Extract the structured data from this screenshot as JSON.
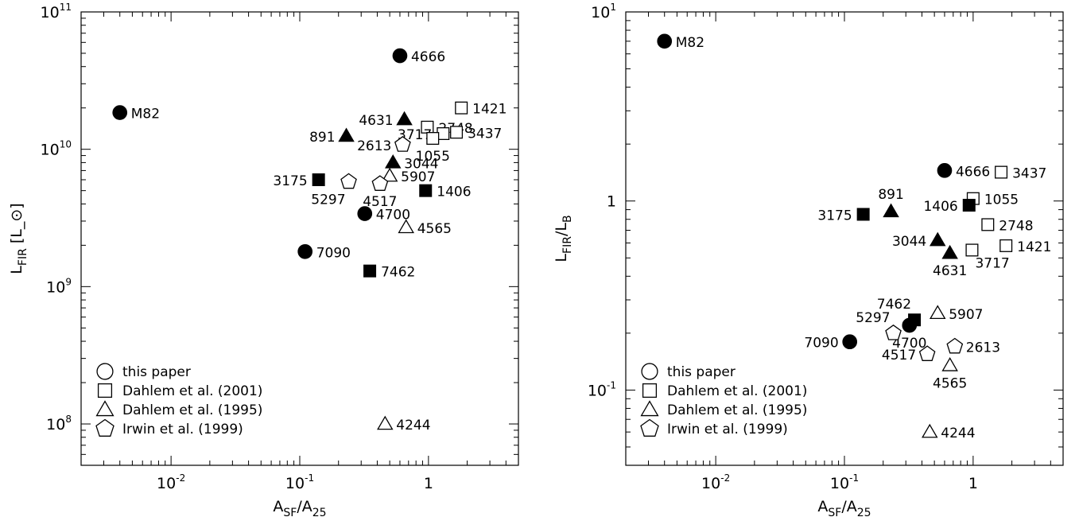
{
  "chart_data": [
    {
      "type": "scatter",
      "xlabel": "A_SF/A_25",
      "ylabel": "L_FIR [L_⊙]",
      "xscale": "log",
      "yscale": "log",
      "xlim": [
        0.002,
        5
      ],
      "ylim": [
        50000000,
        100000000000
      ],
      "x_ticks": [
        {
          "value": 0.01,
          "label": "10",
          "exp": "-2"
        },
        {
          "value": 0.1,
          "label": "10",
          "exp": "-1"
        },
        {
          "value": 1,
          "label": "1",
          "exp": ""
        }
      ],
      "y_ticks": [
        {
          "value": 100000000,
          "label": "10",
          "exp": "8"
        },
        {
          "value": 1000000000,
          "label": "10",
          "exp": "9"
        },
        {
          "value": 10000000000,
          "label": "10",
          "exp": "10"
        },
        {
          "value": 100000000000,
          "label": "10",
          "exp": "11"
        }
      ],
      "legend_position": "bottom-left",
      "points": [
        {
          "label": "M82",
          "x": 0.004,
          "y": 18500000000,
          "marker": "circle",
          "fill": "filled",
          "label_side": "right"
        },
        {
          "label": "4666",
          "x": 0.6,
          "y": 48000000000,
          "marker": "circle",
          "fill": "filled",
          "label_side": "right"
        },
        {
          "label": "4700",
          "x": 0.32,
          "y": 3400000000,
          "marker": "circle",
          "fill": "filled",
          "label_side": "right"
        },
        {
          "label": "7090",
          "x": 0.11,
          "y": 1800000000,
          "marker": "circle",
          "fill": "filled",
          "label_side": "right"
        },
        {
          "label": "1421",
          "x": 1.8,
          "y": 20000000000,
          "marker": "square",
          "fill": "open",
          "label_side": "right"
        },
        {
          "label": "2748",
          "x": 0.98,
          "y": 14500000000,
          "marker": "square",
          "fill": "open",
          "label_side": "right"
        },
        {
          "label": "3717",
          "x": 1.3,
          "y": 13000000000,
          "marker": "square",
          "fill": "open",
          "label_side": "left"
        },
        {
          "label": "3437",
          "x": 1.65,
          "y": 13300000000,
          "marker": "square",
          "fill": "open",
          "label_side": "right"
        },
        {
          "label": "1055",
          "x": 1.08,
          "y": 12000000000,
          "marker": "square",
          "fill": "open",
          "label_side": "below"
        },
        {
          "label": "3175",
          "x": 0.14,
          "y": 6000000000,
          "marker": "square",
          "fill": "filled",
          "label_side": "left"
        },
        {
          "label": "1406",
          "x": 0.95,
          "y": 5000000000,
          "marker": "square",
          "fill": "filled",
          "label_side": "right"
        },
        {
          "label": "7462",
          "x": 0.35,
          "y": 1300000000,
          "marker": "square",
          "fill": "filled",
          "label_side": "right"
        },
        {
          "label": "891",
          "x": 0.23,
          "y": 12500000000,
          "marker": "triangle",
          "fill": "filled",
          "label_side": "left"
        },
        {
          "label": "4631",
          "x": 0.65,
          "y": 16500000000,
          "marker": "triangle",
          "fill": "filled",
          "label_side": "left"
        },
        {
          "label": "3044",
          "x": 0.53,
          "y": 8000000000,
          "marker": "triangle",
          "fill": "filled",
          "label_side": "right"
        },
        {
          "label": "5907",
          "x": 0.5,
          "y": 6400000000,
          "marker": "triangle",
          "fill": "open",
          "label_side": "right"
        },
        {
          "label": "4565",
          "x": 0.67,
          "y": 2700000000,
          "marker": "triangle",
          "fill": "open",
          "label_side": "right"
        },
        {
          "label": "4244",
          "x": 0.46,
          "y": 100000000,
          "marker": "triangle",
          "fill": "open",
          "label_side": "right"
        },
        {
          "label": "2613",
          "x": 0.63,
          "y": 10800000000,
          "marker": "pentagon",
          "fill": "open",
          "label_side": "left"
        },
        {
          "label": "5297",
          "x": 0.24,
          "y": 5800000000,
          "marker": "pentagon",
          "fill": "open",
          "label_side": "below-left"
        },
        {
          "label": "4517",
          "x": 0.42,
          "y": 5600000000,
          "marker": "pentagon",
          "fill": "open",
          "label_side": "below"
        }
      ]
    },
    {
      "type": "scatter",
      "xlabel": "A_SF/A_25",
      "ylabel": "L_FIR/L_B",
      "xscale": "log",
      "yscale": "log",
      "xlim": [
        0.002,
        5
      ],
      "ylim": [
        0.04,
        10
      ],
      "x_ticks": [
        {
          "value": 0.01,
          "label": "10",
          "exp": "-2"
        },
        {
          "value": 0.1,
          "label": "10",
          "exp": "-1"
        },
        {
          "value": 1,
          "label": "1",
          "exp": ""
        }
      ],
      "y_ticks": [
        {
          "value": 0.1,
          "label": "10",
          "exp": "-1"
        },
        {
          "value": 1,
          "label": "1",
          "exp": ""
        },
        {
          "value": 10,
          "label": "10",
          "exp": "1"
        }
      ],
      "legend_position": "bottom-left",
      "points": [
        {
          "label": "M82",
          "x": 0.004,
          "y": 7,
          "marker": "circle",
          "fill": "filled",
          "label_side": "right"
        },
        {
          "label": "4666",
          "x": 0.6,
          "y": 1.45,
          "marker": "circle",
          "fill": "filled",
          "label_side": "right"
        },
        {
          "label": "4700",
          "x": 0.32,
          "y": 0.22,
          "marker": "circle",
          "fill": "filled",
          "label_side": "below"
        },
        {
          "label": "7090",
          "x": 0.11,
          "y": 0.18,
          "marker": "circle",
          "fill": "filled",
          "label_side": "left"
        },
        {
          "label": "3437",
          "x": 1.65,
          "y": 1.42,
          "marker": "square",
          "fill": "open",
          "label_side": "right"
        },
        {
          "label": "1055",
          "x": 1.0,
          "y": 1.03,
          "marker": "square",
          "fill": "open",
          "label_side": "right"
        },
        {
          "label": "2748",
          "x": 1.3,
          "y": 0.75,
          "marker": "square",
          "fill": "open",
          "label_side": "right"
        },
        {
          "label": "1421",
          "x": 1.8,
          "y": 0.58,
          "marker": "square",
          "fill": "open",
          "label_side": "right"
        },
        {
          "label": "3717",
          "x": 0.98,
          "y": 0.55,
          "marker": "square",
          "fill": "open",
          "label_side": "below-right"
        },
        {
          "label": "3175",
          "x": 0.14,
          "y": 0.85,
          "marker": "square",
          "fill": "filled",
          "label_side": "left"
        },
        {
          "label": "1406",
          "x": 0.93,
          "y": 0.95,
          "marker": "square",
          "fill": "filled",
          "label_side": "left"
        },
        {
          "label": "7462",
          "x": 0.35,
          "y": 0.235,
          "marker": "square",
          "fill": "filled",
          "label_side": "above-left"
        },
        {
          "label": "891",
          "x": 0.23,
          "y": 0.88,
          "marker": "triangle",
          "fill": "filled",
          "label_side": "above"
        },
        {
          "label": "3044",
          "x": 0.53,
          "y": 0.62,
          "marker": "triangle",
          "fill": "filled",
          "label_side": "left"
        },
        {
          "label": "4631",
          "x": 0.66,
          "y": 0.53,
          "marker": "triangle",
          "fill": "filled",
          "label_side": "below"
        },
        {
          "label": "5907",
          "x": 0.53,
          "y": 0.255,
          "marker": "triangle",
          "fill": "open",
          "label_side": "right"
        },
        {
          "label": "4565",
          "x": 0.66,
          "y": 0.135,
          "marker": "triangle",
          "fill": "open",
          "label_side": "below"
        },
        {
          "label": "4244",
          "x": 0.46,
          "y": 0.06,
          "marker": "triangle",
          "fill": "open",
          "label_side": "right"
        },
        {
          "label": "5297",
          "x": 0.24,
          "y": 0.2,
          "marker": "pentagon",
          "fill": "open",
          "label_side": "above-left"
        },
        {
          "label": "4517",
          "x": 0.44,
          "y": 0.155,
          "marker": "pentagon",
          "fill": "open",
          "label_side": "left"
        },
        {
          "label": "2613",
          "x": 0.72,
          "y": 0.17,
          "marker": "pentagon",
          "fill": "open",
          "label_side": "right"
        }
      ]
    }
  ],
  "legend": [
    {
      "marker": "circle",
      "label": "this paper"
    },
    {
      "marker": "square",
      "label": "Dahlem et al. (2001)"
    },
    {
      "marker": "triangle",
      "label": "Dahlem et al. (1995)"
    },
    {
      "marker": "pentagon",
      "label": "Irwin et al. (1999)"
    }
  ]
}
